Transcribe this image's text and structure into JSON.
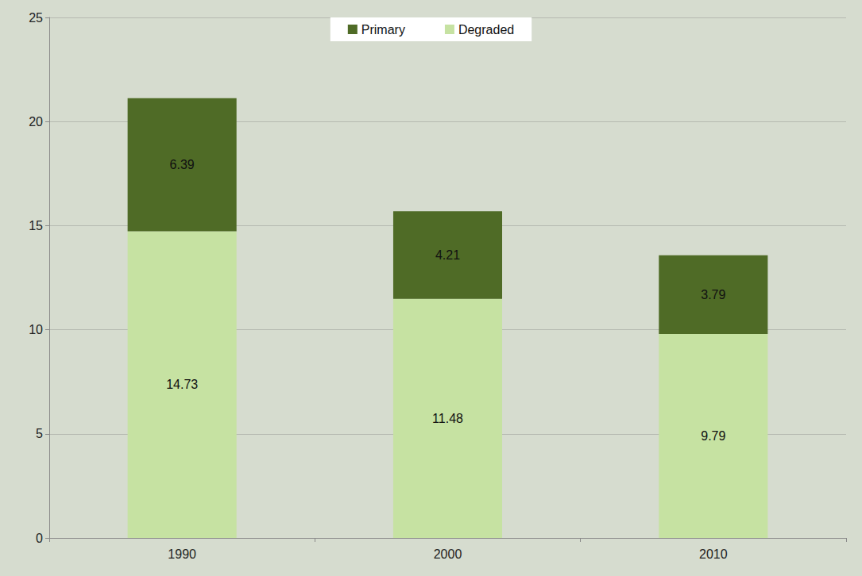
{
  "chart_data": {
    "type": "bar",
    "stacked": true,
    "categories": [
      "1990",
      "2000",
      "2010"
    ],
    "series": [
      {
        "name": "Primary",
        "color": "#4f6b26",
        "values": [
          6.39,
          4.21,
          3.79
        ]
      },
      {
        "name": "Degraded",
        "color": "#c6e2a2",
        "values": [
          14.73,
          11.48,
          9.79
        ]
      }
    ],
    "ylim": [
      0,
      25
    ],
    "yticks": [
      0,
      5,
      10,
      15,
      20,
      25
    ],
    "grid": true,
    "legend": "top",
    "data_labels": true
  }
}
